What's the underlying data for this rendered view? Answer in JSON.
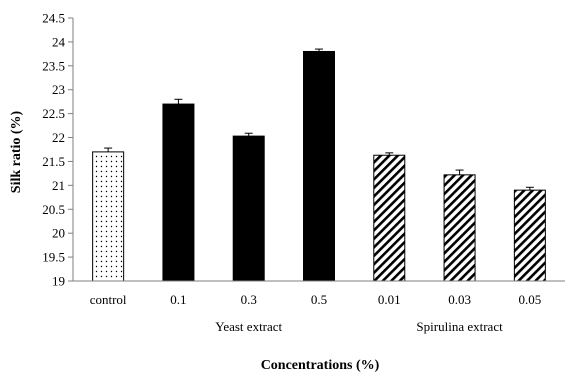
{
  "chart_data": {
    "type": "bar",
    "title": "",
    "ylabel": "Silk ratio (%)",
    "xlabel": "Concentrations (%)",
    "ylim": [
      19,
      24.5
    ],
    "yticks": [
      "19",
      "19.5",
      "20",
      "20.5",
      "21",
      "21.5",
      "22",
      "22.5",
      "23",
      "23.5",
      "24",
      "24.5"
    ],
    "grid": false,
    "categories": [
      "control",
      "0.1",
      "0.3",
      "0.5",
      "0.01",
      "0.03",
      "0.05"
    ],
    "values": [
      21.7,
      22.7,
      22.03,
      23.8,
      21.63,
      21.22,
      20.9
    ],
    "errors": [
      0.08,
      0.1,
      0.06,
      0.05,
      0.05,
      0.1,
      0.06
    ],
    "fills": [
      "dotted",
      "solid",
      "solid",
      "solid",
      "hatched",
      "hatched",
      "hatched"
    ],
    "groups": [
      {
        "label": "Yeast extract",
        "categories": [
          "0.1",
          "0.3",
          "0.5"
        ]
      },
      {
        "label": "Spirulina extract",
        "categories": [
          "0.01",
          "0.03",
          "0.05"
        ]
      }
    ],
    "colors": {
      "bar": "#000000",
      "axis": "#7f7f7f",
      "background": "#ffffff"
    }
  }
}
